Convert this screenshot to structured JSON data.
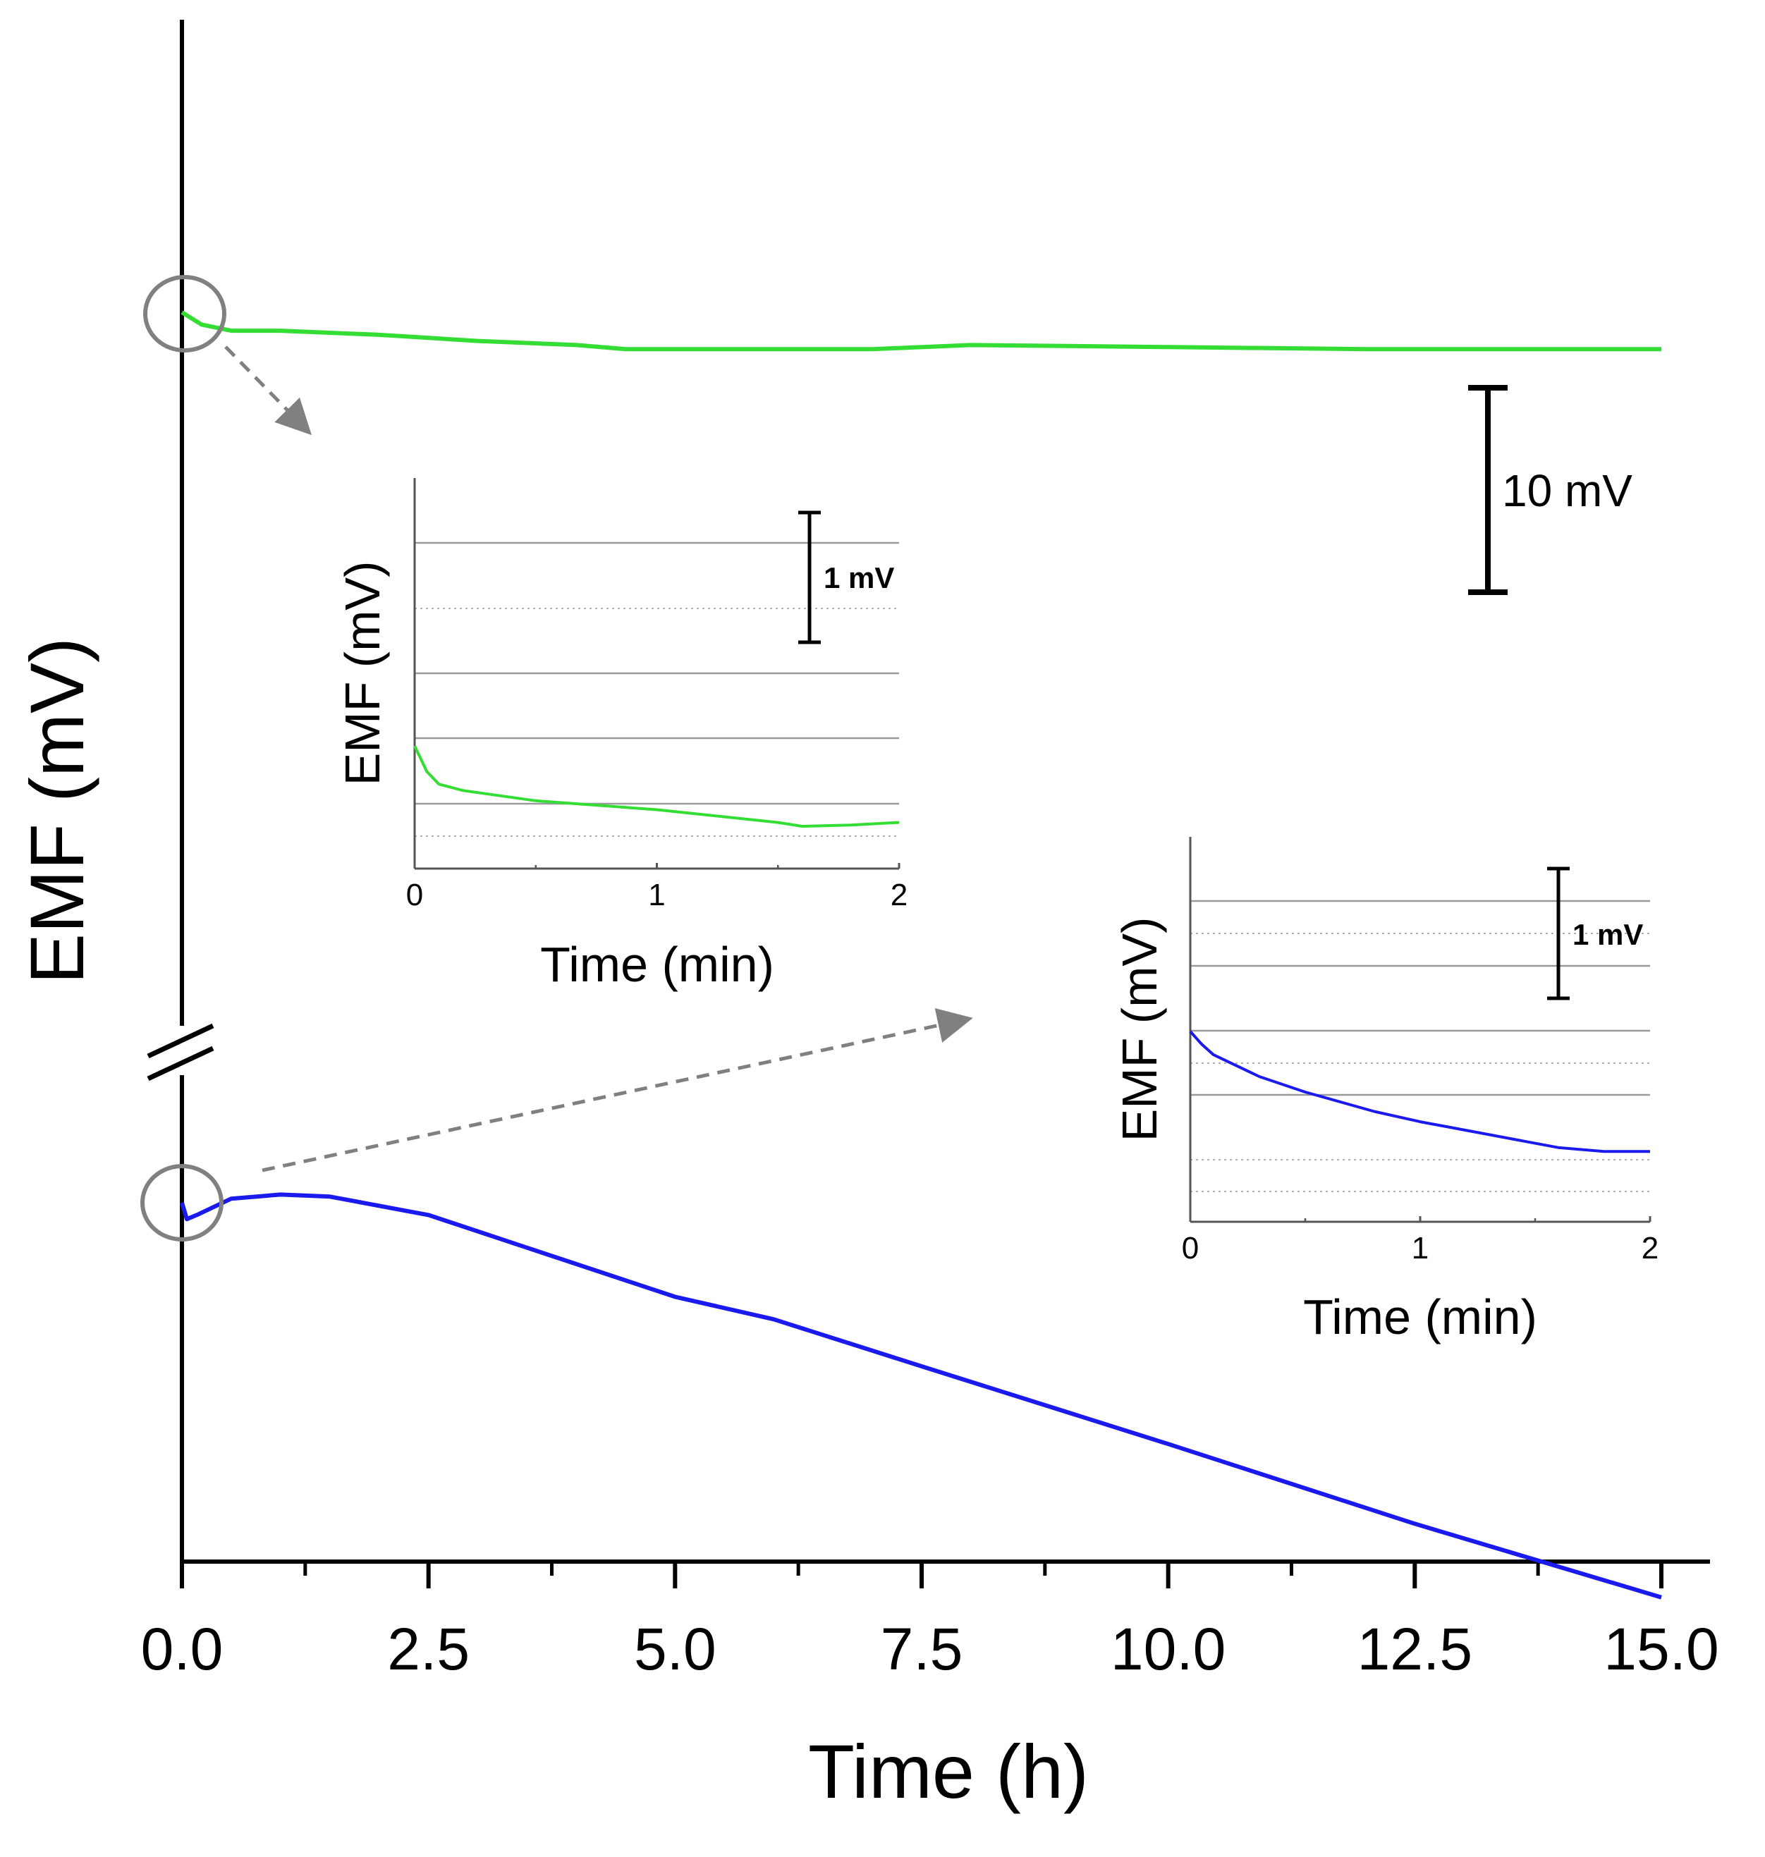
{
  "chart_data": [
    {
      "id": "main",
      "type": "line",
      "xlabel": "Time (h)",
      "ylabel": "EMF (mV)",
      "xlim": [
        0,
        15
      ],
      "x_ticks": [
        "0.0",
        "2.5",
        "5.0",
        "7.5",
        "10.0",
        "12.5",
        "15.0"
      ],
      "y_axis_break": true,
      "scale_bar_label": "10 mV",
      "scale_bar_mV": 10,
      "series": [
        {
          "name": "green",
          "color": "#33dd33",
          "x": [
            0,
            0.2,
            0.5,
            1,
            2,
            3,
            4,
            4.5,
            5,
            7,
            8,
            10,
            12,
            14,
            15
          ],
          "y": [
            0.0,
            -0.6,
            -0.9,
            -0.9,
            -1.1,
            -1.4,
            -1.6,
            -1.8,
            -1.8,
            -1.8,
            -1.6,
            -1.7,
            -1.8,
            -1.8,
            -1.8
          ]
        },
        {
          "name": "blue",
          "color": "#1a1aee",
          "x": [
            0,
            0.05,
            0.15,
            0.5,
            1,
            1.5,
            2.5,
            3.5,
            5,
            6,
            7.5,
            10,
            12.5,
            15
          ],
          "y": [
            0.0,
            -0.8,
            -0.6,
            0.2,
            0.4,
            0.3,
            -0.6,
            -2.2,
            -4.6,
            -5.7,
            -8.0,
            -11.8,
            -15.7,
            -19.3
          ]
        }
      ]
    },
    {
      "id": "inset-green",
      "type": "line",
      "xlabel": "Time (min)",
      "ylabel": "EMF (mV)",
      "xlim": [
        0,
        2
      ],
      "x_ticks": [
        "0",
        "1",
        "2"
      ],
      "scale_bar_label": "1 mV",
      "series": [
        {
          "name": "green",
          "color": "#33dd33",
          "x": [
            0,
            0.05,
            0.1,
            0.2,
            0.5,
            1,
            1.5,
            1.6,
            1.8,
            2
          ],
          "y": [
            0.0,
            -0.2,
            -0.3,
            -0.35,
            -0.43,
            -0.5,
            -0.6,
            -0.63,
            -0.62,
            -0.6
          ]
        }
      ]
    },
    {
      "id": "inset-blue",
      "type": "line",
      "xlabel": "Time (min)",
      "ylabel": "EMF (mV)",
      "xlim": [
        0,
        2
      ],
      "x_ticks": [
        "0",
        "1",
        "2"
      ],
      "scale_bar_label": "1 mV",
      "series": [
        {
          "name": "blue",
          "color": "#1a1aee",
          "x": [
            0,
            0.05,
            0.1,
            0.3,
            0.5,
            0.8,
            1,
            1.3,
            1.6,
            1.8,
            2
          ],
          "y": [
            0.0,
            -0.1,
            -0.18,
            -0.35,
            -0.47,
            -0.62,
            -0.7,
            -0.8,
            -0.9,
            -0.93,
            -0.93
          ]
        }
      ]
    }
  ]
}
